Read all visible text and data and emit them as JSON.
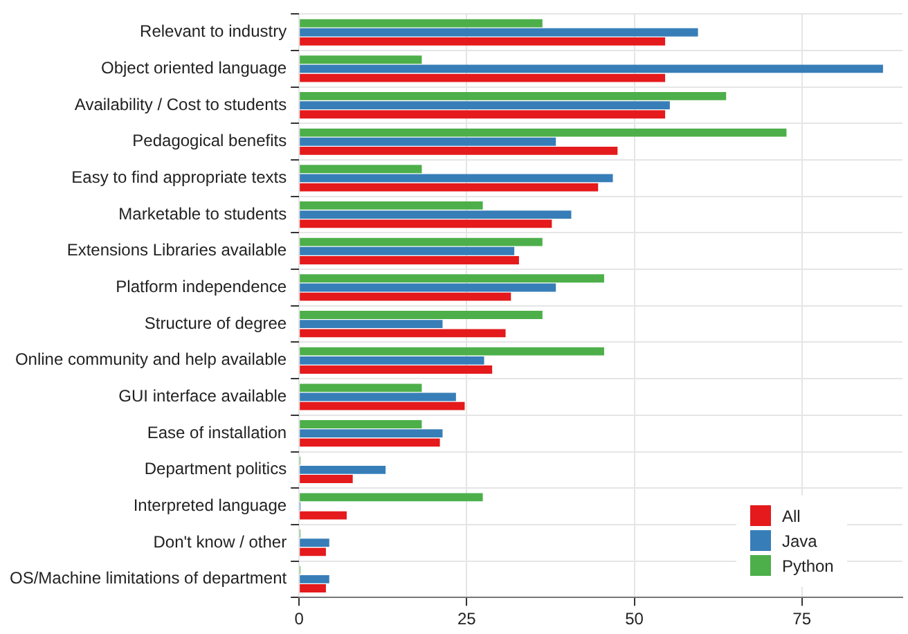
{
  "chart_data": {
    "type": "bar",
    "orientation": "horizontal",
    "categories": [
      "Relevant to industry",
      "Object oriented language",
      "Availability / Cost to students",
      "Pedagogical benefits",
      "Easy to find appropriate texts",
      "Marketable to students",
      "Extensions Libraries available",
      "Platform independence",
      "Structure of degree",
      "Online community and help available",
      "GUI interface available",
      "Ease of installation",
      "Department politics",
      "Interpreted language",
      "Don't know / other",
      "OS/Machine limitations of department"
    ],
    "series": [
      {
        "name": "All",
        "color": "#e41a1c",
        "values": [
          54.6,
          54.6,
          54.6,
          47.5,
          44.6,
          37.7,
          32.8,
          31.6,
          30.8,
          28.8,
          24.7,
          21.0,
          8.0,
          7.1,
          4.0,
          4.0
        ]
      },
      {
        "name": "Java",
        "color": "#377eb8",
        "values": [
          59.5,
          87.1,
          55.3,
          38.3,
          46.8,
          40.6,
          32.1,
          38.3,
          21.4,
          27.6,
          23.4,
          21.4,
          12.9,
          0.2,
          4.5,
          4.5
        ]
      },
      {
        "name": "Python",
        "color": "#4daf4a",
        "values": [
          36.3,
          18.3,
          63.7,
          72.7,
          18.3,
          27.4,
          36.3,
          45.5,
          36.3,
          45.5,
          18.3,
          18.3,
          0.2,
          27.4,
          0.2,
          0.2
        ]
      }
    ],
    "xlim": [
      0,
      90
    ],
    "xticks": [
      0,
      25,
      50,
      75
    ],
    "grid": true,
    "legend": "bottom right"
  }
}
